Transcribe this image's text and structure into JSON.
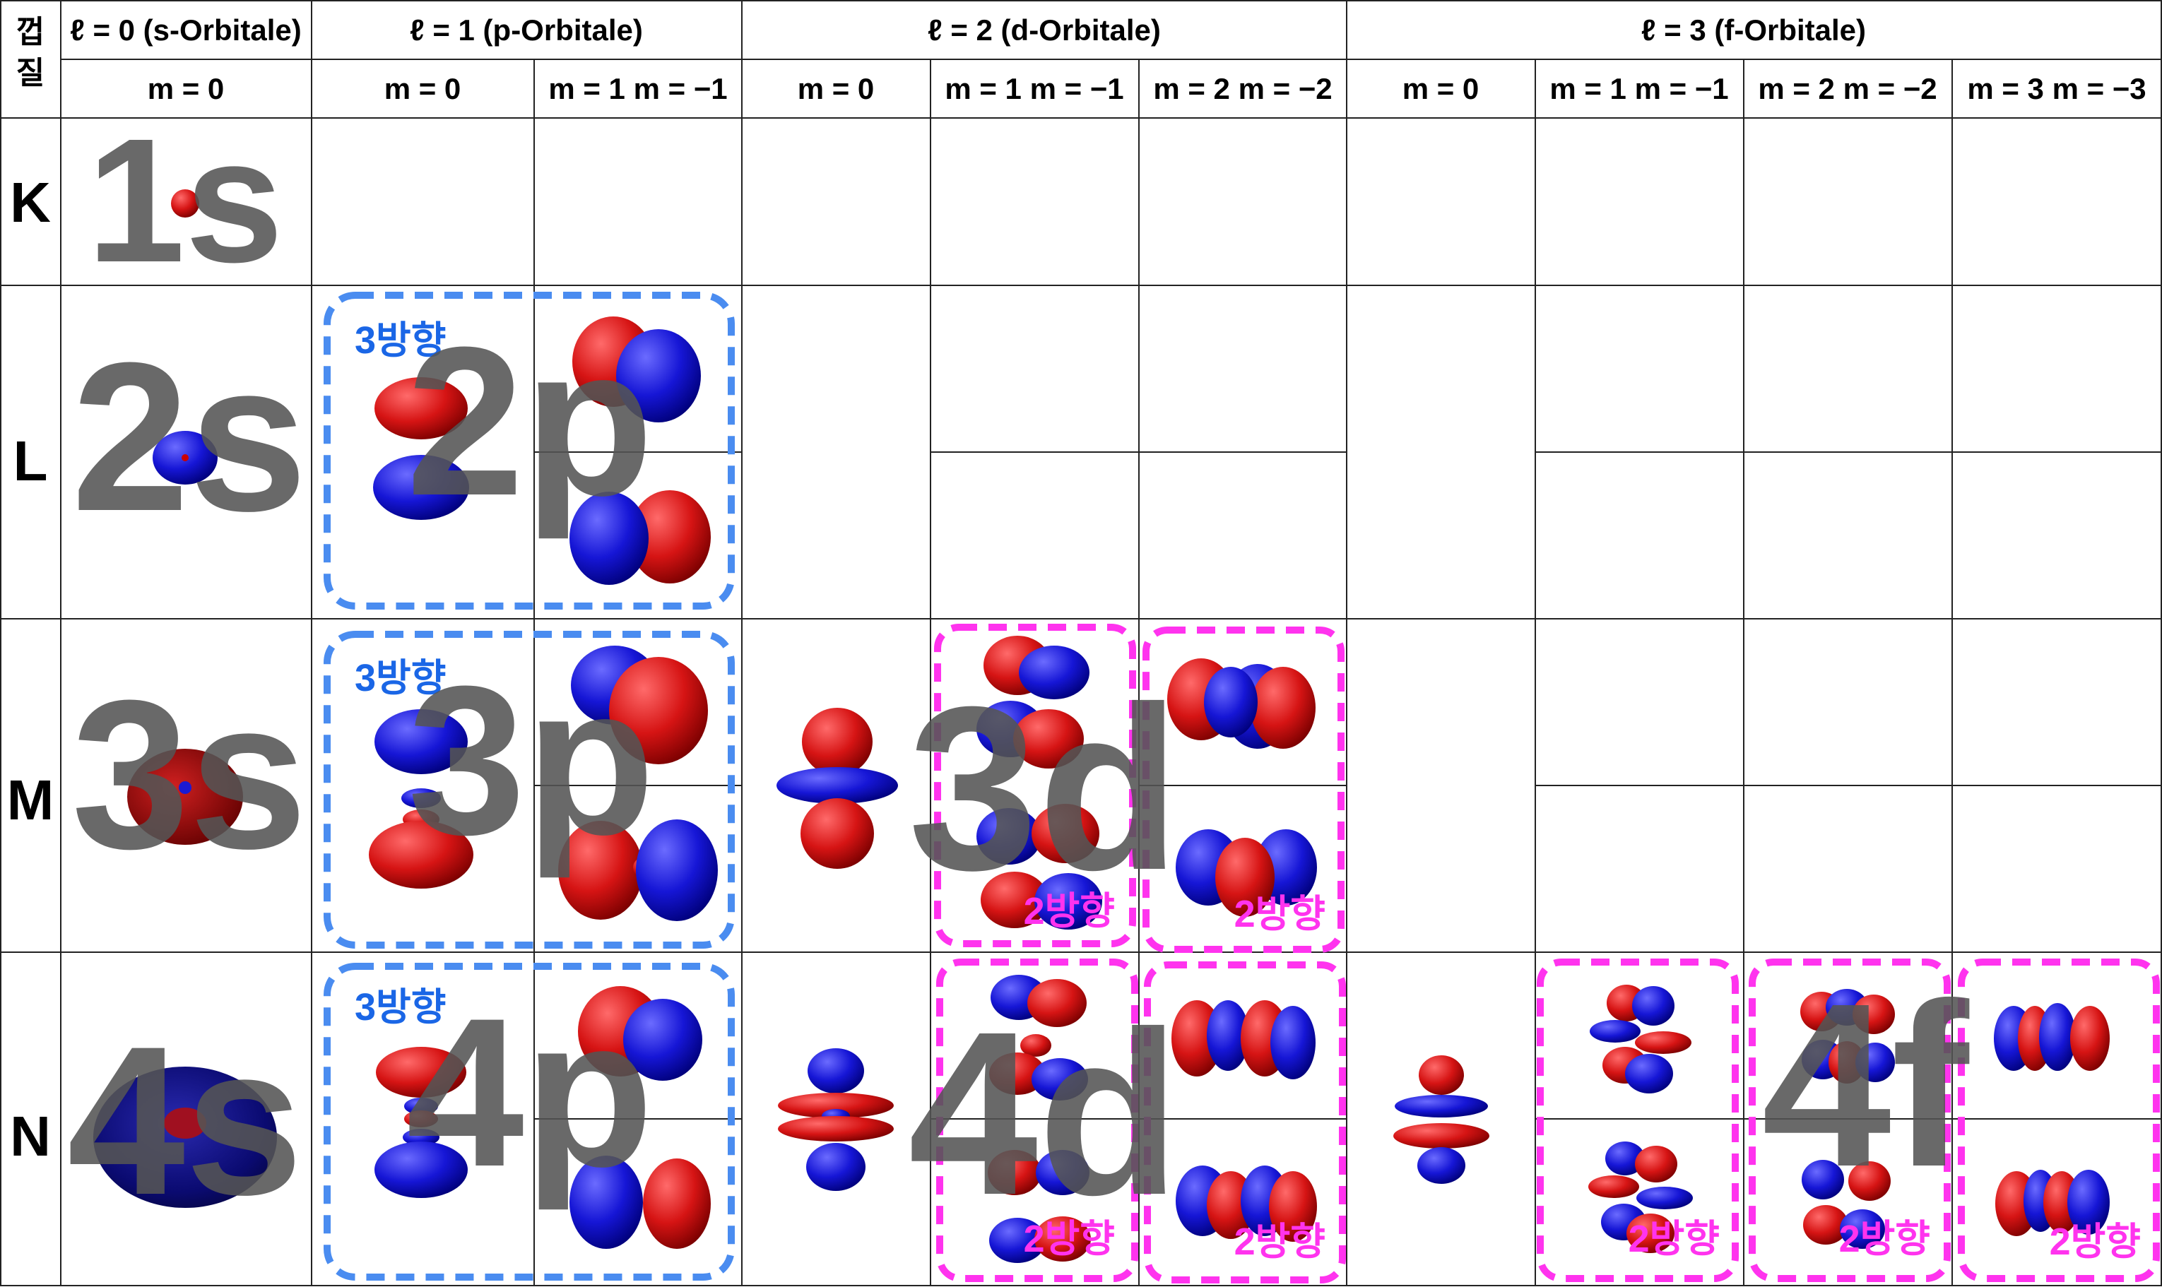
{
  "header": {
    "corner": [
      "껍",
      "질"
    ],
    "groups": {
      "s": "ℓ = 0 (s-Orbitale)",
      "p": "ℓ = 1 (p-Orbitale)",
      "d": "ℓ = 2 (d-Orbitale)",
      "f": "ℓ = 3 (f-Orbitale)"
    },
    "m_labels": {
      "m0": "m = 0",
      "m1": "m = 1  m = −1",
      "m2": "m = 2  m = −2",
      "m3": "m = 3  m = −3"
    }
  },
  "shells": [
    "K",
    "L",
    "M",
    "N"
  ],
  "orbital_labels": [
    "1s",
    "2s",
    "3s",
    "4s",
    "2p",
    "3p",
    "4p",
    "3d",
    "4d",
    "4f"
  ],
  "direction_labels": {
    "three": "3방향",
    "two": "2방향"
  },
  "colors": {
    "positive_lobe": "#d21a1a",
    "negative_lobe": "#1a1ad2",
    "p_group_frame": "#4a8cf0",
    "pair_frame": "#ff33ee",
    "overlay_text": "#555555"
  }
}
